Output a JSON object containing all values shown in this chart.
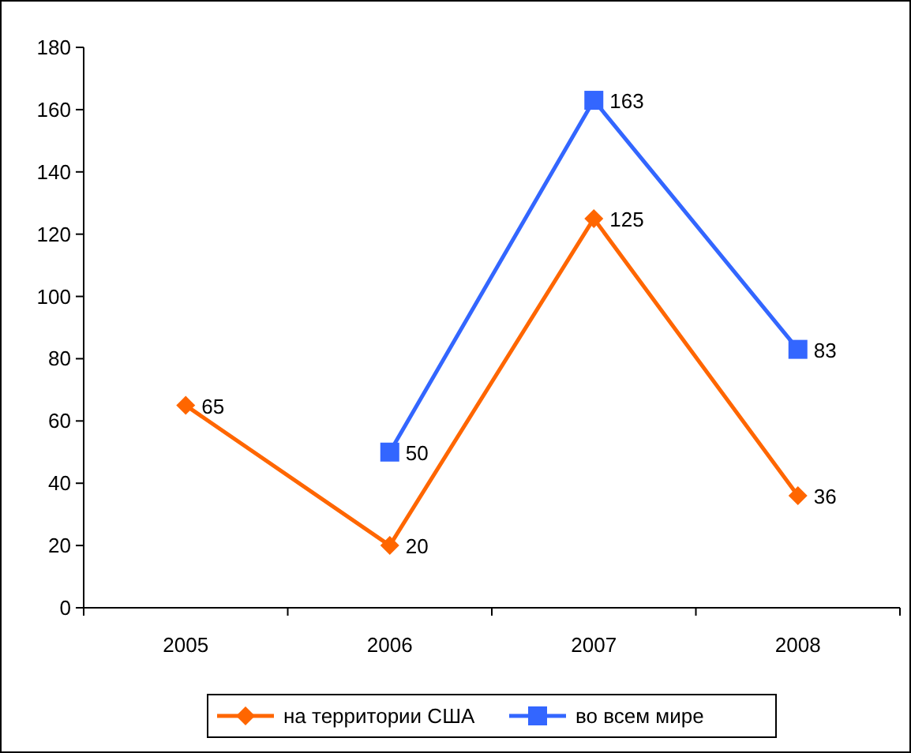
{
  "chart_data": {
    "type": "line",
    "categories": [
      "2005",
      "2006",
      "2007",
      "2008"
    ],
    "series": [
      {
        "name": "на территории США",
        "color": "#ff6600",
        "marker": "diamond",
        "values": [
          65,
          20,
          125,
          36
        ]
      },
      {
        "name": "во всем мире",
        "color": "#3366ff",
        "marker": "square",
        "values": [
          null,
          50,
          163,
          83
        ]
      }
    ],
    "ylim": [
      0,
      180
    ],
    "yticks": [
      0,
      20,
      40,
      60,
      80,
      100,
      120,
      140,
      160,
      180
    ],
    "data_labels": true,
    "legend": "bottom",
    "grid": false
  }
}
